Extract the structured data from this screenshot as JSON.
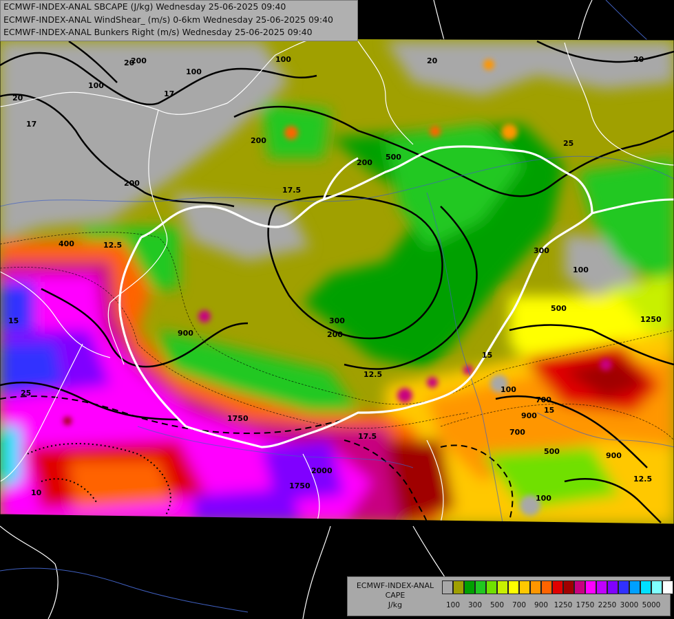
{
  "header": {
    "line1": "ECMWF-INDEX-ANAL SBCAPE (J/kg) Wednesday 25-06-2025 09:40",
    "line2": "ECMWF-INDEX-ANAL WindShear_ (m/s) 0-6km Wednesday 25-06-2025 09:40",
    "line3": "ECMWF-INDEX-ANAL Bunkers Right (m/s) Wednesday 25-06-2025 09:40"
  },
  "legend": {
    "title_line1": "ECMWF-INDEX-ANAL",
    "title_line2": "CAPE",
    "title_line3": "J/kg",
    "colors": [
      "#a8a8a8",
      "#a0a000",
      "#00a000",
      "#20c820",
      "#70e000",
      "#c8f000",
      "#ffff00",
      "#ffc800",
      "#ff9600",
      "#ff6400",
      "#e00000",
      "#a00000",
      "#c80080",
      "#ff00ff",
      "#c000ff",
      "#8000ff",
      "#3030ff",
      "#00a0ff",
      "#00e0ff",
      "#80ffff",
      "#ffffff"
    ],
    "tick_labels": [
      "100",
      "300",
      "500",
      "700",
      "900",
      "1250",
      "1750",
      "2250",
      "3000",
      "5000"
    ]
  },
  "map_labels": {
    "shear": [
      "20",
      "17",
      "17",
      "20",
      "20",
      "25",
      "17.5",
      "12.5",
      "15",
      "15",
      "12.5",
      "17.5",
      "20",
      "12.5",
      "25",
      "15",
      "10"
    ],
    "cape": [
      "100",
      "200",
      "100",
      "200",
      "300",
      "100",
      "200",
      "400",
      "300",
      "100",
      "200",
      "500",
      "900",
      "1250",
      "700",
      "1750",
      "1750",
      "900",
      "500",
      "100",
      "200",
      "2000",
      "100",
      "700",
      "900",
      "500"
    ]
  }
}
